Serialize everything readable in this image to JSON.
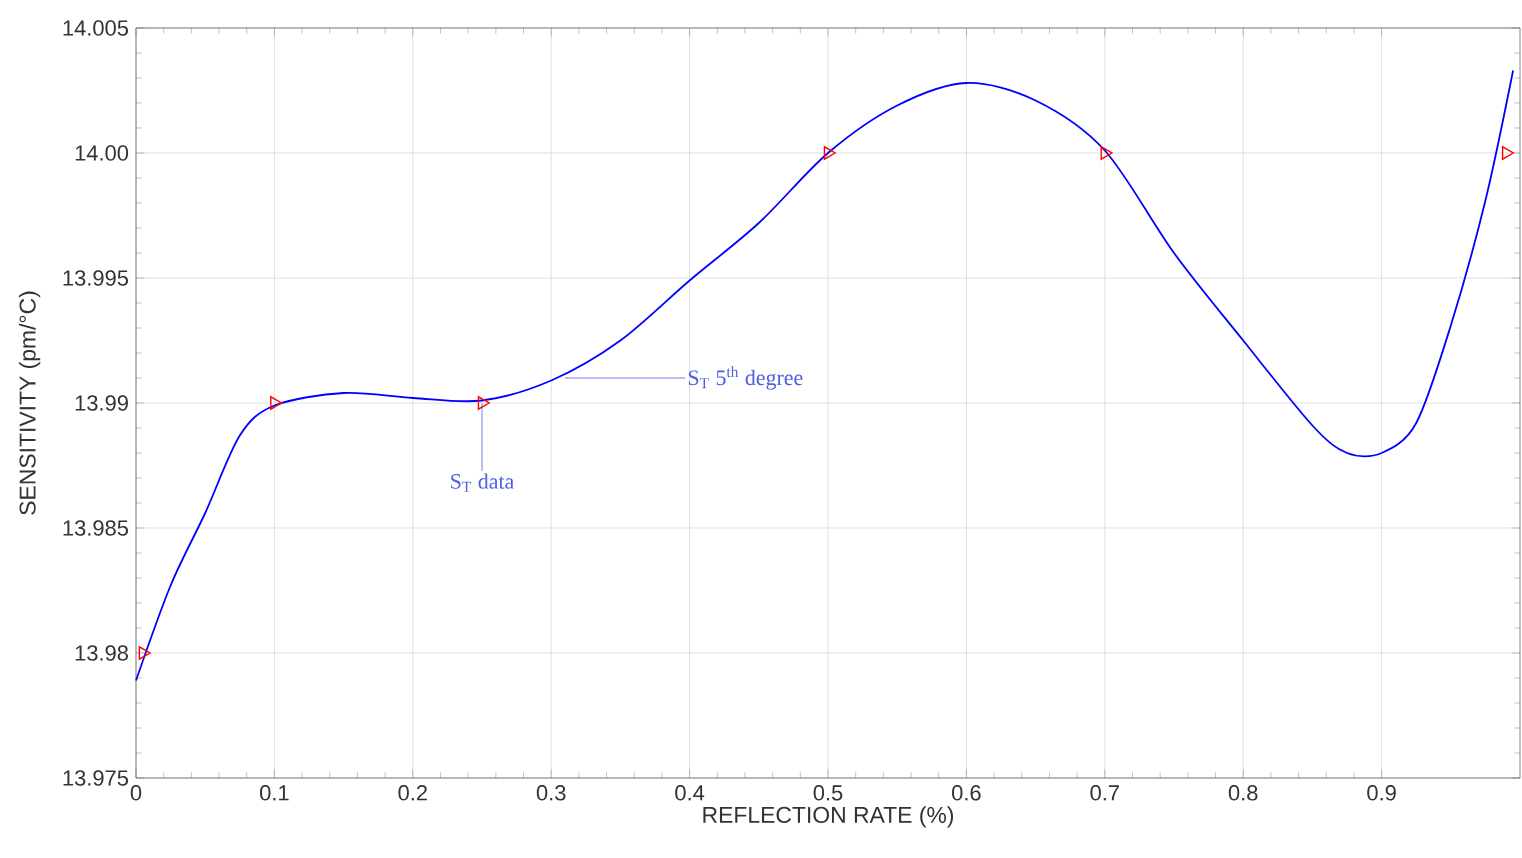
{
  "chart_data": {
    "type": "line",
    "xlabel": "REFLECTION RATE (%)",
    "ylabel": "SENSITIVITY (pm/°C)",
    "xlim": [
      0,
      1
    ],
    "ylim": [
      13.975,
      14.005
    ],
    "xticks": [
      0,
      0.1,
      0.2,
      0.3,
      0.4,
      0.5,
      0.6,
      0.7,
      0.8,
      0.9
    ],
    "yticks": [
      {
        "value": 13.975,
        "label": "13.975"
      },
      {
        "value": 13.98,
        "label": "13.98"
      },
      {
        "value": 13.985,
        "label": "13.985"
      },
      {
        "value": 13.99,
        "label": "13.99"
      },
      {
        "value": 13.995,
        "label": "13.995"
      },
      {
        "value": 14.0,
        "label": "14.00"
      },
      {
        "value": 14.005,
        "label": "14.005"
      }
    ],
    "grid": true,
    "series": [
      {
        "type": "scatter",
        "color": "#ff0000",
        "marker": "triangle",
        "x": [
          0.005,
          0.1,
          0.25,
          0.5,
          0.7,
          0.99
        ],
        "values": [
          13.98,
          13.99,
          13.99,
          14.0,
          14.0,
          14.0
        ]
      },
      {
        "color": "#0000ff",
        "marker": "none",
        "line_style": "solid",
        "x": [
          0,
          0.025,
          0.05,
          0.075,
          0.1,
          0.15,
          0.2,
          0.25,
          0.3,
          0.35,
          0.4,
          0.45,
          0.5,
          0.55,
          0.6,
          0.65,
          0.7,
          0.75,
          0.8,
          0.85,
          0.875,
          0.9,
          0.925,
          0.95,
          0.975,
          0.995
        ],
        "values": [
          13.9789,
          13.9827,
          13.9856,
          13.9887,
          13.9899,
          13.9904,
          13.9902,
          13.9901,
          13.9909,
          13.9925,
          13.9949,
          13.9972,
          14.0,
          14.0019,
          14.0028,
          14.0021,
          14.0001,
          13.996,
          13.9925,
          13.9891,
          13.988,
          13.988,
          13.9892,
          13.9931,
          13.9981,
          14.0033
        ]
      }
    ],
    "annotations": [
      {
        "text": "S$_{T}$ data",
        "x": 0.25,
        "y": 13.99
      },
      {
        "text": "S$_{T}$ 5$^{th}$ degree",
        "x": 0.31,
        "y": 13.991
      }
    ]
  }
}
